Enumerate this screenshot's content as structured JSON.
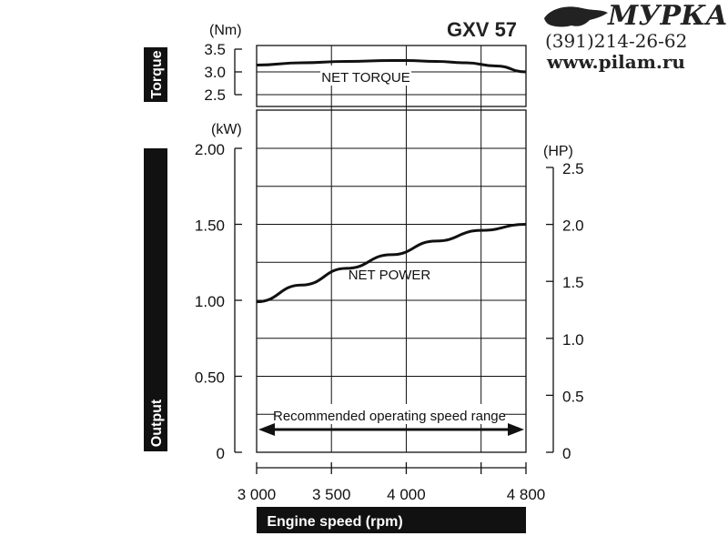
{
  "chart_data": {
    "type": "line",
    "model": "GXV 57",
    "xlabel": "Engine speed (rpm)",
    "x_ticks": [
      "3 000",
      "3 500",
      "4 000",
      "4 800"
    ],
    "x_values": [
      3000,
      3500,
      4000,
      4800
    ],
    "xlim": [
      3000,
      4800
    ],
    "torque_panel": {
      "label": "Torque",
      "unit": "(Nm)",
      "ylim": [
        2.5,
        3.5
      ],
      "ticks": [
        "3.5",
        "3.0",
        "2.5"
      ],
      "tick_values": [
        3.5,
        3.0,
        2.5
      ],
      "series": [
        {
          "name": "NET TORQUE",
          "x": [
            3000,
            3300,
            3600,
            3900,
            4000,
            4200,
            4400,
            4600,
            4800
          ],
          "y": [
            3.15,
            3.2,
            3.23,
            3.25,
            3.25,
            3.23,
            3.2,
            3.13,
            3.0
          ]
        }
      ]
    },
    "output_panel": {
      "label": "Output",
      "unit_left": "(kW)",
      "unit_right": "(HP)",
      "ylim": [
        0,
        2.0
      ],
      "ticks_left": [
        "2.00",
        "1.50",
        "1.00",
        "0.50",
        "0"
      ],
      "tick_values_left": [
        2.0,
        1.5,
        1.0,
        0.5,
        0
      ],
      "ticks_right": [
        "2.5",
        "2.0",
        "1.5",
        "1.0",
        "0.5",
        "0"
      ],
      "tick_values_right": [
        2.5,
        2.0,
        1.5,
        1.0,
        0.5,
        0
      ],
      "series": [
        {
          "name": "NET POWER",
          "x": [
            3000,
            3300,
            3600,
            3900,
            4200,
            4500,
            4800
          ],
          "y": [
            0.99,
            1.1,
            1.21,
            1.3,
            1.39,
            1.46,
            1.5
          ]
        }
      ],
      "annotation": "Recommended operating speed range",
      "range": [
        3000,
        4800
      ]
    },
    "grid": true
  },
  "watermark": {
    "brand": "МУРКА",
    "phone": "(391)214-26-62",
    "site": "www.pilam.ru"
  }
}
